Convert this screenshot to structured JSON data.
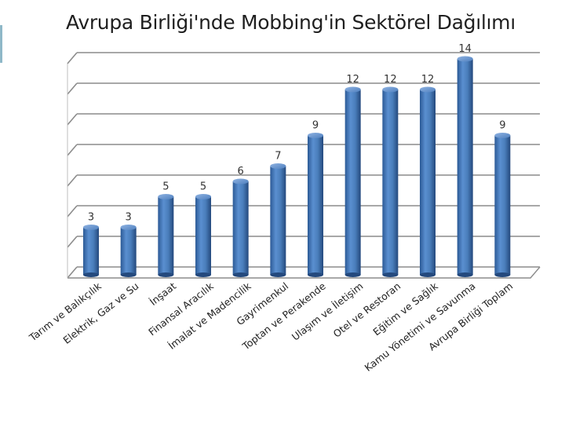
{
  "title": "Avrupa Birliği'nde Mobbing'in Sektörel Dağılımı",
  "chart_data": {
    "type": "bar",
    "title": "Avrupa Birliği'nde Mobbing'in Sektörel Dağılımı",
    "categories": [
      "Tarım ve Balıkçılık",
      "Elektrik, Gaz ve Su",
      "İnşaat",
      "Finansal Aracılık",
      "İmalat ve Madencilik",
      "Gayrimenkul",
      "Toptan ve Perakende",
      "Ulaşım ve İletişim",
      "Otel ve Restoran",
      "Eğitim ve Sağlık",
      "Kamu Yönetimi ve Savunma",
      "Avrupa Birliği Toplam"
    ],
    "values": [
      3,
      3,
      5,
      5,
      6,
      7,
      9,
      12,
      12,
      12,
      14,
      9
    ],
    "value_labels": [
      "3",
      "3",
      "5",
      "5",
      "6",
      "7",
      "9",
      "12",
      "12",
      "12",
      "14",
      "9"
    ],
    "ylim": [
      0,
      14
    ],
    "grid": true,
    "bar_color": "#4a7ebb",
    "legend": "none"
  }
}
